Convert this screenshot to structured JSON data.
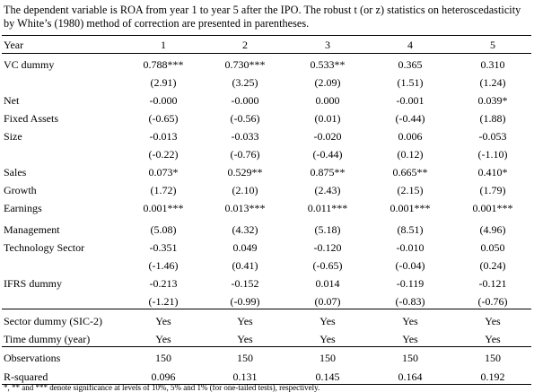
{
  "caption": "The dependent variable is ROA from year 1 to year 5 after the IPO. The robust t (or z) statistics on heteroscedasticity by White’s (1980) method of correction are presented in parentheses.",
  "header": {
    "label": "Year",
    "cols": [
      "1",
      "2",
      "3",
      "4",
      "5"
    ]
  },
  "rows": [
    {
      "label": "VC dummy",
      "cells": [
        "0.788***",
        "0.730***",
        "0.533**",
        "0.365",
        "0.310"
      ]
    },
    {
      "label": "",
      "cells": [
        "(2.91)",
        "(3.25)",
        "(2.09)",
        "(1.51)",
        "(1.24)"
      ]
    },
    {
      "label": "Net",
      "cells": [
        "-0.000",
        "-0.000",
        "0.000",
        "-0.001",
        "0.039*"
      ]
    },
    {
      "label": "Fixed Assets",
      "cells": [
        "(-0.65)",
        "(-0.56)",
        "(0.01)",
        "(-0.44)",
        "(1.88)"
      ]
    },
    {
      "label": "Size",
      "cells": [
        "-0.013",
        "-0.033",
        "-0.020",
        "0.006",
        "-0.053"
      ]
    },
    {
      "label": "",
      "cells": [
        "(-0.22)",
        "(-0.76)",
        "(-0.44)",
        "(0.12)",
        "(-1.10)"
      ]
    },
    {
      "label": "Sales",
      "cells": [
        "0.073*",
        "0.529**",
        "0.875**",
        "0.665**",
        "0.410*"
      ]
    },
    {
      "label": "Growth",
      "cells": [
        "(1.72)",
        "(2.10)",
        "(2.43)",
        "(2.15)",
        "(1.79)"
      ]
    },
    {
      "label": "Earnings",
      "cells": [
        "0.001***",
        "0.013***",
        "0.011***",
        "0.001***",
        "0.001***"
      ]
    },
    {
      "label": "Management",
      "cells": [
        "(5.08)",
        "(4.32)",
        "(5.18)",
        "(8.51)",
        "(4.96)"
      ]
    },
    {
      "label": "Technology Sector",
      "cells": [
        "-0.351",
        "0.049",
        "-0.120",
        "-0.010",
        "0.050"
      ]
    },
    {
      "label": "",
      "cells": [
        "(-1.46)",
        "(0.41)",
        "(-0.65)",
        "(-0.04)",
        "(0.24)"
      ]
    },
    {
      "label": "IFRS dummy",
      "cells": [
        "-0.213",
        "-0.152",
        "0.014",
        "-0.119",
        "-0.121"
      ]
    },
    {
      "label": "",
      "cells": [
        "(-1.21)",
        "(-0.99)",
        "(0.07)",
        "(-0.83)",
        "(-0.76)"
      ]
    },
    {
      "label": "Sector dummy (SIC-2)",
      "cells": [
        "Yes",
        "Yes",
        "Yes",
        "Yes",
        "Yes"
      ]
    },
    {
      "label": "Time dummy (year)",
      "cells": [
        "Yes",
        "Yes",
        "Yes",
        "Yes",
        "Yes"
      ]
    },
    {
      "label": "Observations",
      "cells": [
        "150",
        "150",
        "150",
        "150",
        "150"
      ]
    },
    {
      "label": "R-squared",
      "cells": [
        "0.096",
        "0.131",
        "0.145",
        "0.164",
        "0.192"
      ]
    }
  ],
  "footnote": "*, ** and *** denote significance at levels of 10%, 5% and 1% (for one-tailed tests), respectively."
}
